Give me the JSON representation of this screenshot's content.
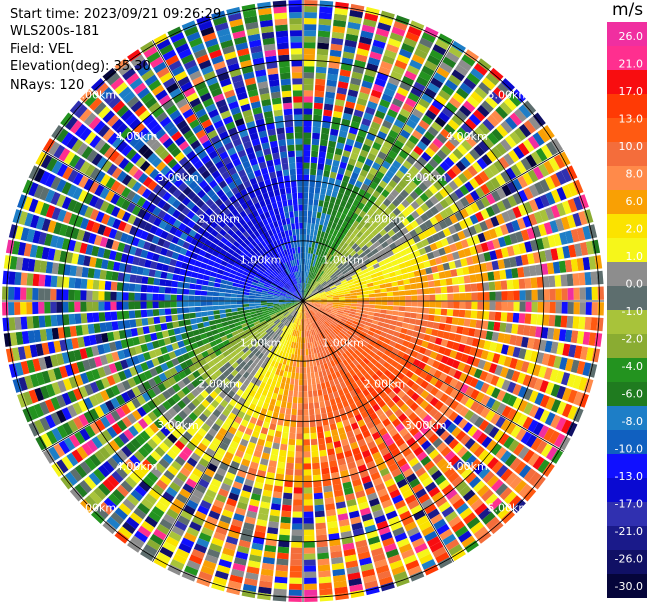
{
  "header": {
    "start_time": "Start time: 2023/09/21 09:26:29",
    "station": "WLS200s-181",
    "field": "Field: VEL",
    "elevation": "Elevation(deg): 35.30",
    "nrays": "NRays: 120"
  },
  "ring_labels": [
    "1.00km",
    "2.00km",
    "3.00km",
    "4.00km",
    "5.00km"
  ],
  "colorbar": {
    "unit": "m/s",
    "tick_labels": [
      "26.0",
      "21.0",
      "17.0",
      "13.0",
      "10.0",
      "8.0",
      "6.0",
      "2.0",
      "1.0",
      "0.0",
      "-1.0",
      "-2.0",
      "-4.0",
      "-6.0",
      "-8.0",
      "-10.0",
      "-13.0",
      "-17.0",
      "-21.0",
      "-26.0",
      "-30.0"
    ],
    "colors": [
      "#f02fa0",
      "#ff2f8f",
      "#f80d10",
      "#ff3a05",
      "#ff5a12",
      "#f46d3b",
      "#ff8a4a",
      "#f9a004",
      "#fbe300",
      "#f6f61a",
      "#8d8d8d",
      "#5d6e6e",
      "#a8c33a",
      "#8aac32",
      "#23931f",
      "#1f7b1f",
      "#1d7ec7",
      "#1060c0",
      "#1010ff",
      "#0a0ad2",
      "#3030b0",
      "#1a1a8a",
      "#101065",
      "#05053a"
    ]
  },
  "radar": {
    "n_rays": 120,
    "n_gates": 50,
    "max_range_km": 5.0
  }
}
